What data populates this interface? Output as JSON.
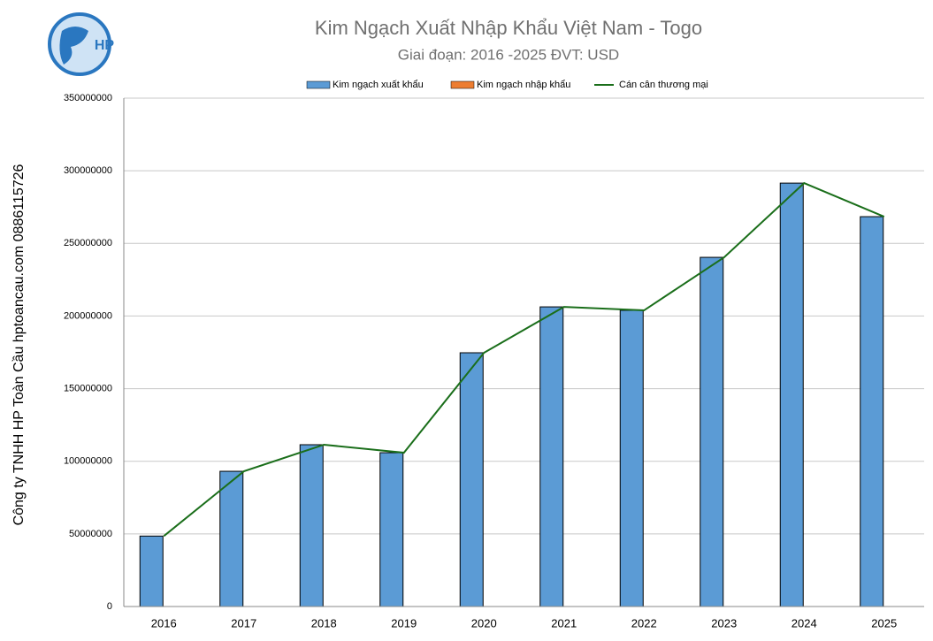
{
  "logo": "HP",
  "side_note": "Công ty TNHH HP Toàn Cầu hptoancau.com 0886115726",
  "chart_data": {
    "type": "bar-line",
    "title": "Kim Ngạch Xuất Nhập Khẩu Việt Nam - Togo",
    "subtitle": "Giai đoạn: 2016 -2025  ĐVT: USD",
    "categories": [
      "2016",
      "2017",
      "2018",
      "2019",
      "2020",
      "2021",
      "2022",
      "2023",
      "2024",
      "2025"
    ],
    "series": [
      {
        "name": "Kim ngạch xuất khẩu",
        "type": "bar",
        "color": "#5b9bd5",
        "values": [
          48500000,
          93100000,
          111400000,
          105900000,
          174700000,
          206300000,
          203900000,
          240400000,
          291500000,
          268400000
        ]
      },
      {
        "name": "Kim ngạch nhập khẩu",
        "type": "bar",
        "color": "#ed7d31",
        "values": [
          0,
          0,
          0,
          0,
          0,
          0,
          0,
          0,
          0,
          0
        ]
      },
      {
        "name": "Cán cân thương mại",
        "type": "line",
        "color": "#1a6e1a",
        "values": [
          48500000,
          93100000,
          111400000,
          105900000,
          174700000,
          206300000,
          203900000,
          240400000,
          291500000,
          268400000
        ]
      }
    ],
    "ylim": [
      0,
      350000000
    ],
    "yticks": [
      0,
      50000000,
      100000000,
      150000000,
      200000000,
      250000000,
      300000000,
      350000000
    ],
    "grid": true,
    "legend": "top"
  }
}
